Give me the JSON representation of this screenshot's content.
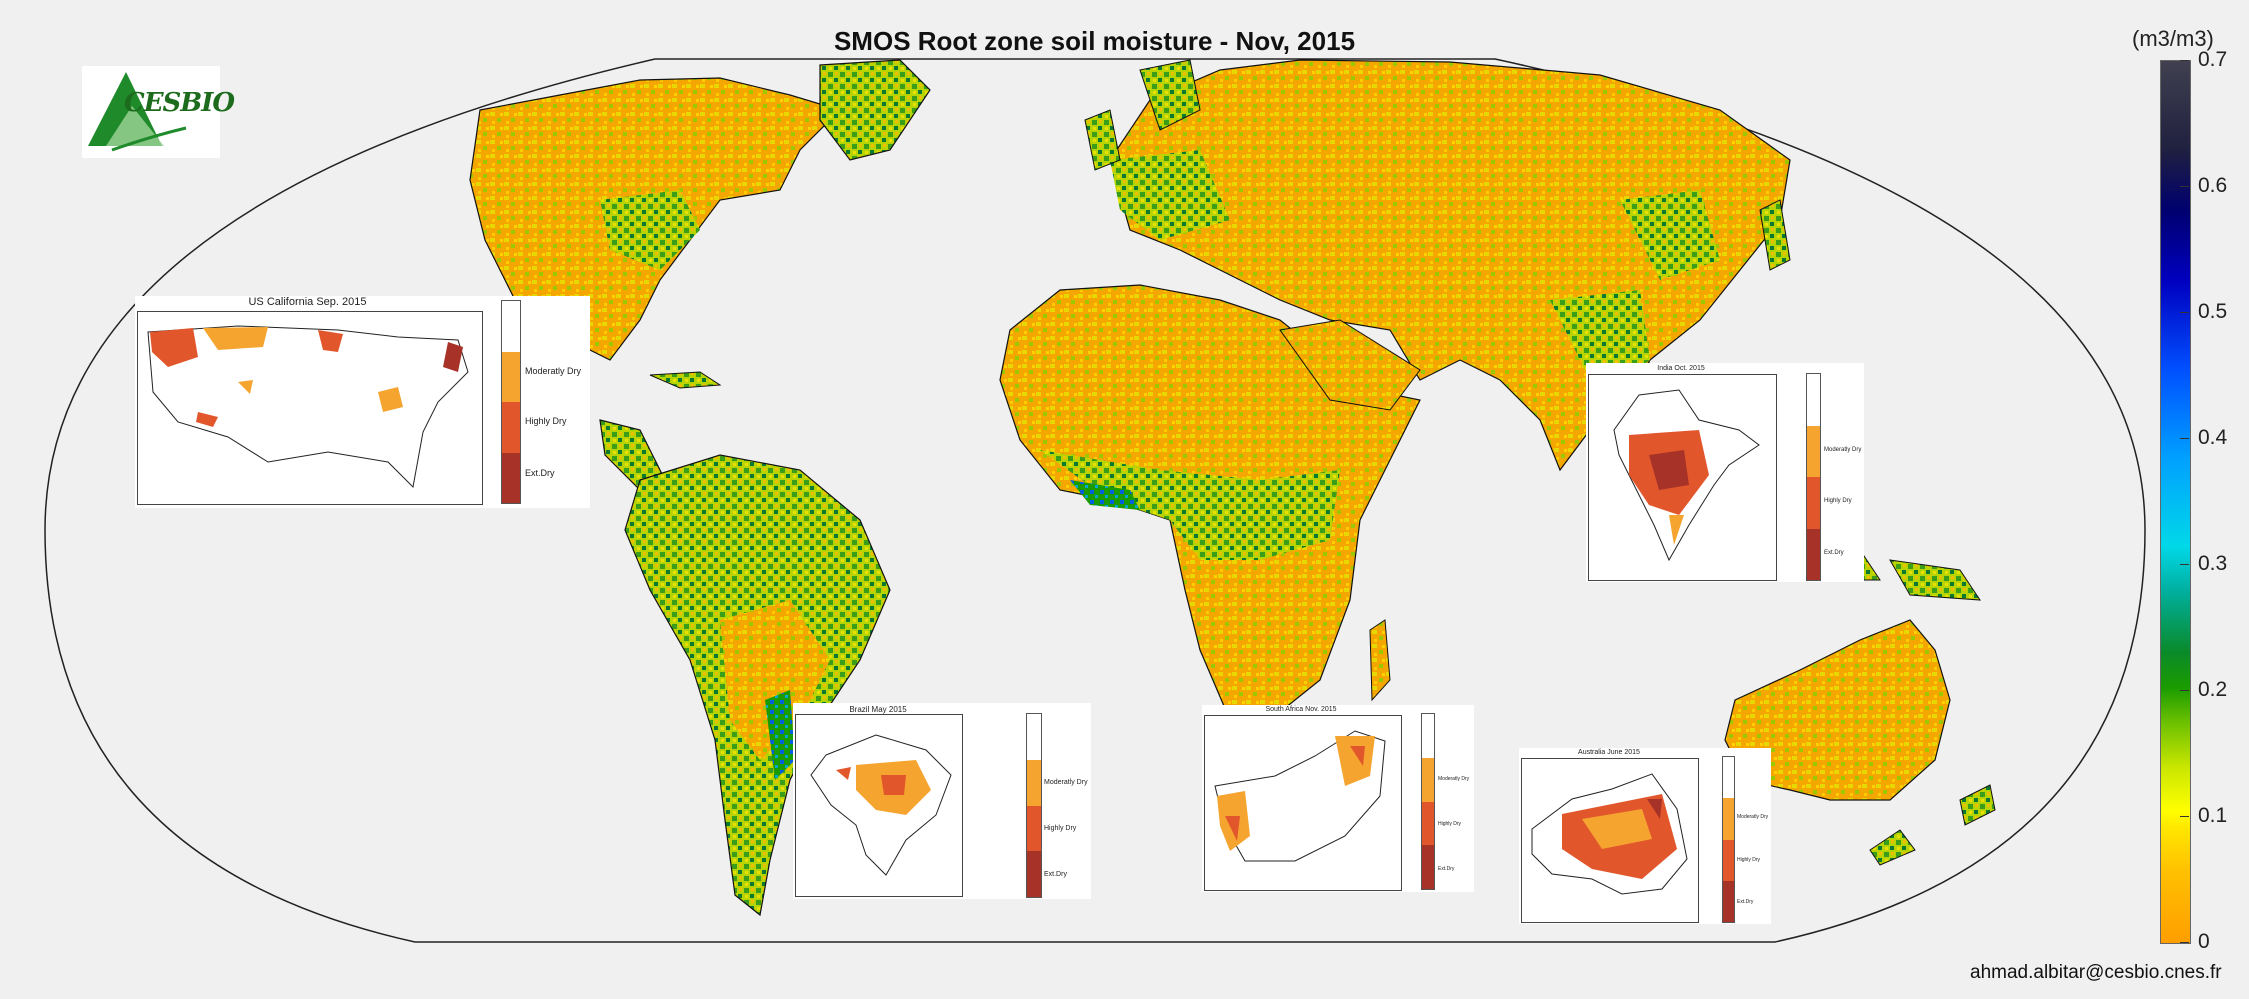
{
  "title": "SMOS Root zone soil moisture - Nov, 2015",
  "logo_text": "CESBIO",
  "colorbar": {
    "unit": "(m3/m3)",
    "ticks": [
      "0.7",
      "0.6",
      "0.5",
      "0.4",
      "0.3",
      "0.2",
      "0.1",
      "0"
    ],
    "colors": [
      "#ff9e00",
      "#ffe600",
      "#6cc000",
      "#1a9b00",
      "#00d8e8",
      "#0050ff",
      "#000070",
      "#404050"
    ]
  },
  "insets": [
    {
      "title": "US California Sep. 2015",
      "labels": [
        "Moderatly Dry",
        "Highly Dry",
        "Ext.Dry"
      ]
    },
    {
      "title": "India Oct. 2015",
      "labels": [
        "Moderatly Dry",
        "Highly Dry",
        "Ext.Dry"
      ]
    },
    {
      "title": "Brazil May 2015",
      "labels": [
        "Moderatly Dry",
        "Highly Dry",
        "Ext.Dry"
      ]
    },
    {
      "title": "South Africa Nov. 2015",
      "labels": [
        "Moderatly Dry",
        "Highly Dry",
        "Ext.Dry"
      ]
    },
    {
      "title": "Australia June 2015",
      "labels": [
        "Moderatly Dry",
        "Highly Dry",
        "Ext.Dry"
      ]
    }
  ],
  "drought_colors": [
    "#ffffff",
    "#f5a430",
    "#e2562c",
    "#a63228"
  ],
  "contact": "ahmad.albitar@cesbio.cnes.fr"
}
